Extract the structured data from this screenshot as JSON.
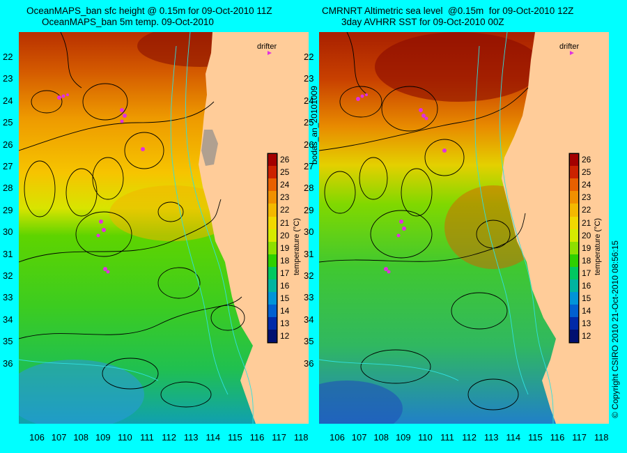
{
  "left": {
    "title_line1": "OceanMAPS_ban sfc height @ 0.15m for 09-Oct-2010 11Z",
    "title_line2": "OceanMAPS_ban 5m temp. 09-Oct-2010"
  },
  "right": {
    "title_line1": "CMRNRT Altimetric sea level  @0.15m  for 09-Oct-2010 12Z",
    "title_line2": "3day AVHRR SST for 09-Oct-2010 00Z"
  },
  "drifter_label": "drifter",
  "colorbar": {
    "label": "temperature (°C)",
    "ticks": [
      "26",
      "25",
      "24",
      "23",
      "22",
      "21",
      "20",
      "19",
      "18",
      "17",
      "16",
      "15",
      "14",
      "13",
      "12"
    ],
    "colors": [
      "#a40000",
      "#cc2200",
      "#e86000",
      "#f09000",
      "#f4b800",
      "#f2d800",
      "#d6ea00",
      "#8ee000",
      "#2ed000",
      "#00c860",
      "#00b4a0",
      "#0094d8",
      "#0060d0",
      "#002aa8",
      "#001070"
    ]
  },
  "y_ticks": [
    "22",
    "23",
    "24",
    "25",
    "26",
    "27",
    "28",
    "29",
    "30",
    "31",
    "32",
    "33",
    "34",
    "35",
    "36"
  ],
  "x_ticks": [
    "106",
    "107",
    "108",
    "109",
    "110",
    "111",
    "112",
    "113",
    "114",
    "115",
    "116",
    "117",
    "118"
  ],
  "side_label": "bodas_an_20101009",
  "copyright": "© Copyright CSIRO 2010   21-Oct-2010 08:56:15"
}
